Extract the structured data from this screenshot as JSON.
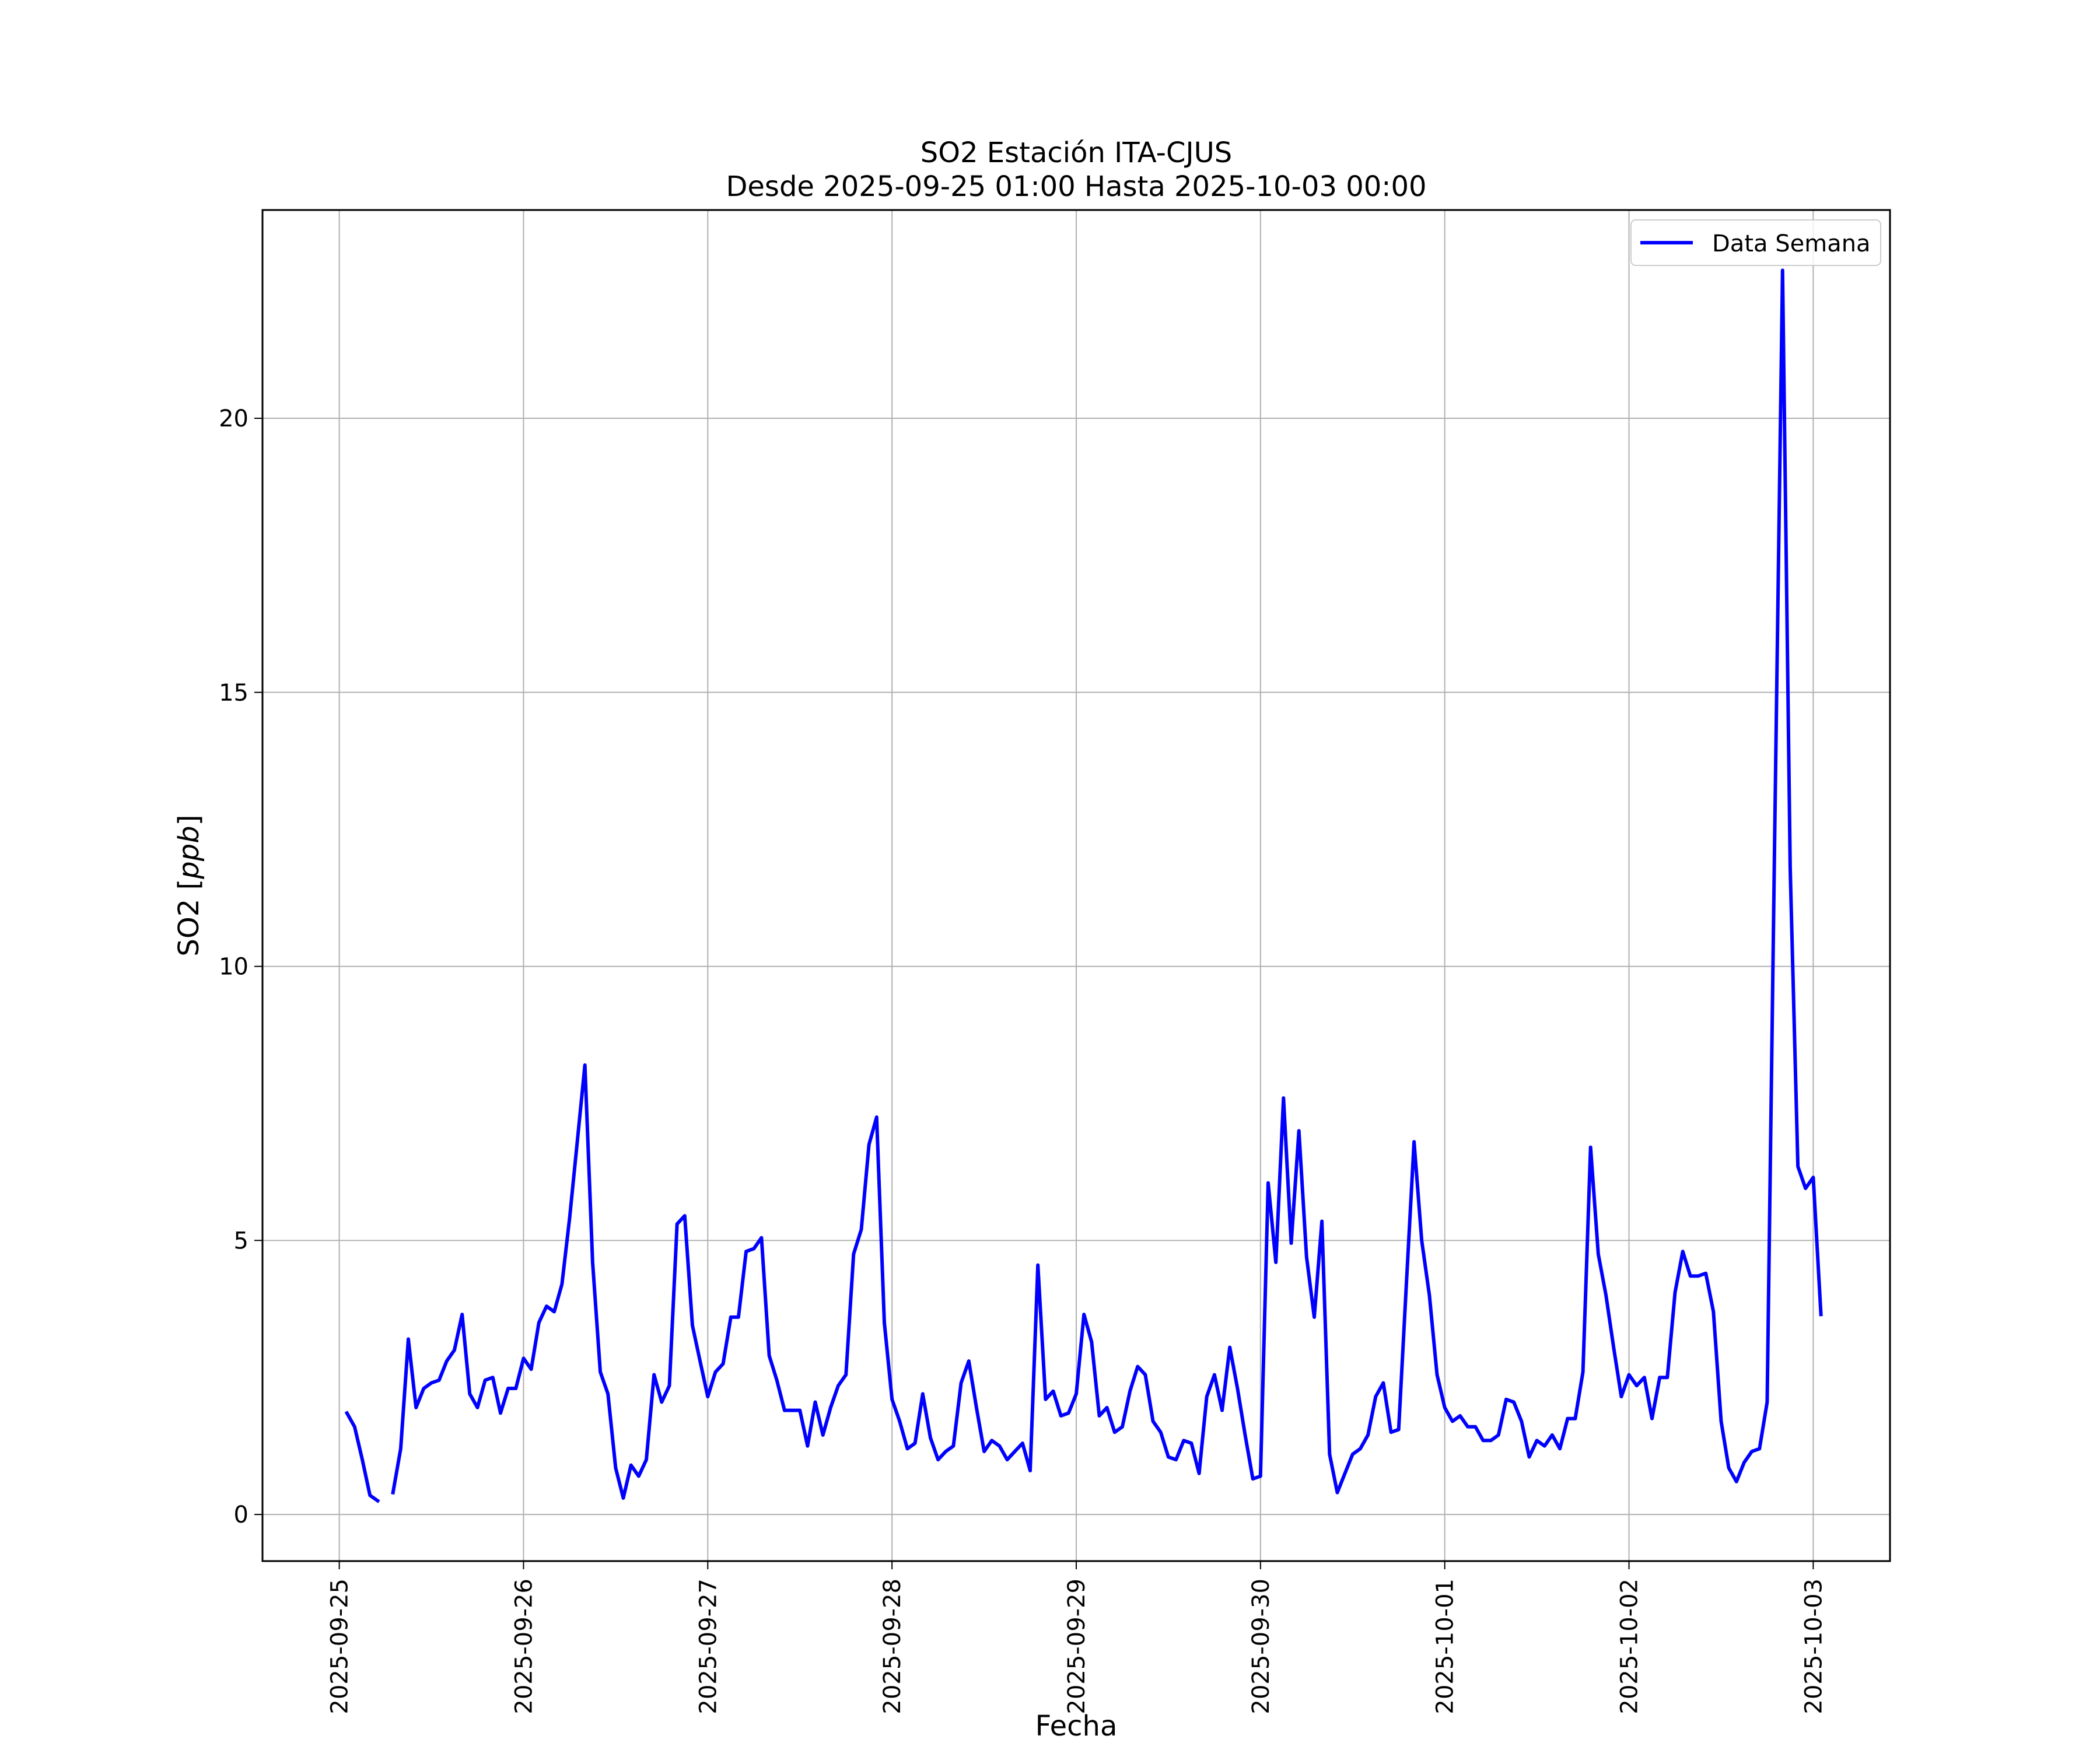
{
  "chart_data": {
    "type": "line",
    "title": "SO2 Estación ITA-CJUS",
    "subtitle": "Desde 2025-09-25 01:00 Hasta 2025-10-03 00:00",
    "xlabel": "Fecha",
    "ylabel": "SO2 [",
    "ylabel_unit": "ppb",
    "ylabel_close": "]",
    "xlim": [
      "2025-09-24T14:00",
      "2025-10-03T10:00"
    ],
    "ylim": [
      -0.85,
      23.8
    ],
    "x_ticks": [
      "2025-09-25",
      "2025-09-26",
      "2025-09-27",
      "2025-09-28",
      "2025-09-29",
      "2025-09-30",
      "2025-10-01",
      "2025-10-02",
      "2025-10-03"
    ],
    "y_ticks": [
      0,
      5,
      10,
      15,
      20
    ],
    "grid": true,
    "legend": "top-right",
    "series": [
      {
        "name": "Data Semana",
        "color": "#0000ff",
        "start": "2025-09-25T01:00",
        "interval": "1h",
        "values": [
          1.85,
          1.6,
          1.0,
          0.35,
          0.25,
          null,
          0.4,
          1.2,
          3.2,
          1.95,
          2.3,
          2.4,
          2.45,
          2.8,
          3.0,
          3.65,
          2.2,
          1.95,
          2.45,
          2.5,
          1.85,
          2.3,
          2.3,
          2.85,
          2.65,
          3.5,
          3.8,
          3.7,
          4.2,
          5.4,
          6.8,
          8.2,
          4.6,
          2.6,
          2.2,
          0.85,
          0.3,
          0.9,
          0.7,
          1.0,
          2.55,
          2.05,
          2.35,
          5.3,
          5.45,
          3.45,
          2.8,
          2.15,
          2.6,
          2.75,
          3.6,
          3.6,
          4.8,
          4.85,
          5.05,
          2.9,
          2.45,
          1.9,
          1.9,
          1.9,
          1.25,
          2.05,
          1.45,
          1.95,
          2.35,
          2.55,
          4.75,
          5.2,
          6.75,
          7.25,
          3.5,
          2.1,
          1.7,
          1.2,
          1.3,
          2.2,
          1.4,
          1.0,
          1.15,
          1.25,
          2.4,
          2.8,
          1.95,
          1.15,
          1.35,
          1.25,
          1.0,
          1.15,
          1.3,
          0.8,
          4.55,
          2.1,
          2.25,
          1.8,
          1.85,
          2.2,
          3.65,
          3.15,
          1.8,
          1.95,
          1.5,
          1.6,
          2.25,
          2.7,
          2.55,
          1.7,
          1.5,
          1.05,
          1.0,
          1.35,
          1.3,
          0.75,
          2.15,
          2.55,
          1.9,
          3.05,
          2.3,
          1.45,
          0.65,
          0.7,
          6.05,
          4.6,
          7.6,
          4.95,
          7.0,
          4.7,
          3.6,
          5.35,
          1.1,
          0.4,
          0.75,
          1.1,
          1.2,
          1.45,
          2.15,
          2.4,
          1.5,
          1.55,
          4.2,
          6.8,
          5.0,
          4.0,
          2.55,
          1.95,
          1.7,
          1.8,
          1.6,
          1.6,
          1.35,
          1.35,
          1.45,
          2.1,
          2.05,
          1.7,
          1.05,
          1.35,
          1.25,
          1.45,
          1.2,
          1.75,
          1.75,
          2.6,
          6.7,
          4.75,
          4.0,
          3.05,
          2.15,
          2.55,
          2.35,
          2.5,
          1.75,
          2.5,
          2.5,
          4.05,
          4.8,
          4.35,
          4.35,
          4.4,
          3.7,
          1.7,
          0.85,
          0.6,
          0.95,
          1.15,
          1.2,
          2.05,
          12.6,
          22.7,
          11.8,
          6.35,
          5.95,
          6.15,
          3.65
        ]
      }
    ]
  }
}
